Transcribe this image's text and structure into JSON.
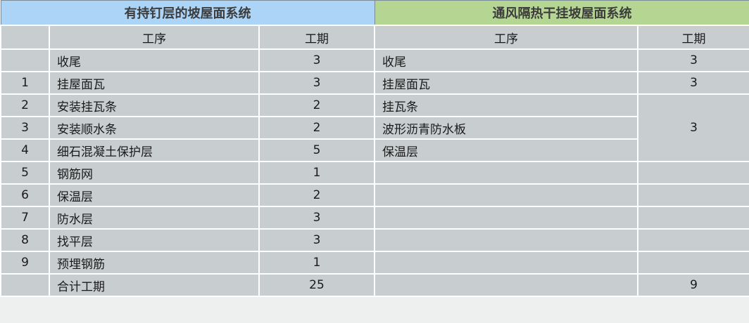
{
  "left_title": "有持钉层的坡屋面系统",
  "right_title": "通风隔热干挂坡屋面系统",
  "col_process": "工序",
  "col_duration": "工期",
  "colors": {
    "left_header": "#acd4f7",
    "right_header": "#b4d692",
    "cell": "#c8cdd0"
  },
  "rows": [
    {
      "no": "",
      "lp": "收尾",
      "ld": "3",
      "rp": "收尾",
      "rd": "3"
    },
    {
      "no": "1",
      "lp": "挂屋面瓦",
      "ld": "3",
      "rp": "挂屋面瓦",
      "rd": "3"
    },
    {
      "no": "2",
      "lp": "安装挂瓦条",
      "ld": "2",
      "rp": "挂瓦条",
      "rd": "3"
    },
    {
      "no": "3",
      "lp": "安装顺水条",
      "ld": "2",
      "rp": "波形沥青防水板"
    },
    {
      "no": "4",
      "lp": "细石混凝土保护层",
      "ld": "5",
      "rp": "保温层"
    },
    {
      "no": "5",
      "lp": "钢筋网",
      "ld": "1",
      "rp": "",
      "rd": ""
    },
    {
      "no": "6",
      "lp": "保温层",
      "ld": "2",
      "rp": "",
      "rd": ""
    },
    {
      "no": "7",
      "lp": "防水层",
      "ld": "3",
      "rp": "",
      "rd": ""
    },
    {
      "no": "8",
      "lp": "找平层",
      "ld": "3",
      "rp": "",
      "rd": ""
    },
    {
      "no": "9",
      "lp": "预埋钢筋",
      "ld": "1",
      "rp": "",
      "rd": ""
    },
    {
      "no": "",
      "lp": "合计工期",
      "ld": "25",
      "rp": "",
      "rd": "9"
    }
  ]
}
